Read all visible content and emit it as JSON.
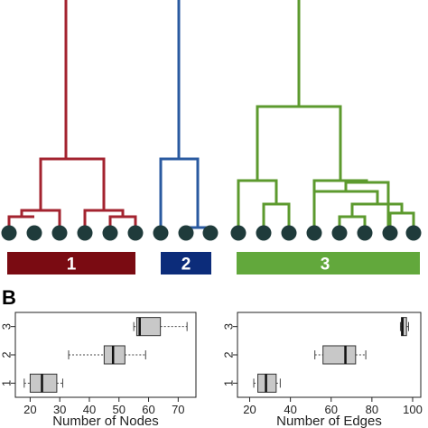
{
  "panel_b_letter": "B",
  "colors": {
    "cluster1": "#a3232f",
    "cluster1_bar": "#7a0b12",
    "cluster2": "#2a5aa0",
    "cluster2_bar": "#0c2c7a",
    "cluster3": "#5c9a2e",
    "cluster3_bar": "#62a83c",
    "node": "#1f3b3b",
    "box_fill": "#c8c8c8"
  },
  "chart_data": [
    {
      "type": "dendrogram",
      "clusters": [
        {
          "label": "1",
          "leaves": 6
        },
        {
          "label": "2",
          "leaves": 3
        },
        {
          "label": "3",
          "leaves": 8
        }
      ]
    },
    {
      "type": "boxplot",
      "orientation": "horizontal",
      "xlabel": "Number of Nodes",
      "xlim": [
        15,
        76
      ],
      "xticks": [
        20,
        30,
        40,
        50,
        60,
        70
      ],
      "categories": [
        "1",
        "2",
        "3"
      ],
      "boxes": [
        {
          "category": "1",
          "min": 18,
          "q1": 20,
          "median": 24,
          "q3": 29,
          "max": 31
        },
        {
          "category": "2",
          "min": 33,
          "q1": 45,
          "median": 48,
          "q3": 52,
          "max": 59
        },
        {
          "category": "3",
          "min": 55,
          "q1": 56,
          "median": 57,
          "q3": 64,
          "max": 73
        }
      ]
    },
    {
      "type": "boxplot",
      "orientation": "horizontal",
      "xlabel": "Number of Edges",
      "xlim": [
        14,
        104
      ],
      "xticks": [
        20,
        40,
        60,
        80,
        100
      ],
      "categories": [
        "1",
        "2",
        "3"
      ],
      "boxes": [
        {
          "category": "1",
          "min": 22,
          "q1": 24,
          "median": 28,
          "q3": 33,
          "max": 35
        },
        {
          "category": "2",
          "min": 52,
          "q1": 56,
          "median": 67,
          "q3": 72,
          "max": 77
        },
        {
          "category": "3",
          "min": 94,
          "q1": 94.5,
          "median": 95,
          "q3": 97,
          "max": 98
        }
      ]
    }
  ]
}
